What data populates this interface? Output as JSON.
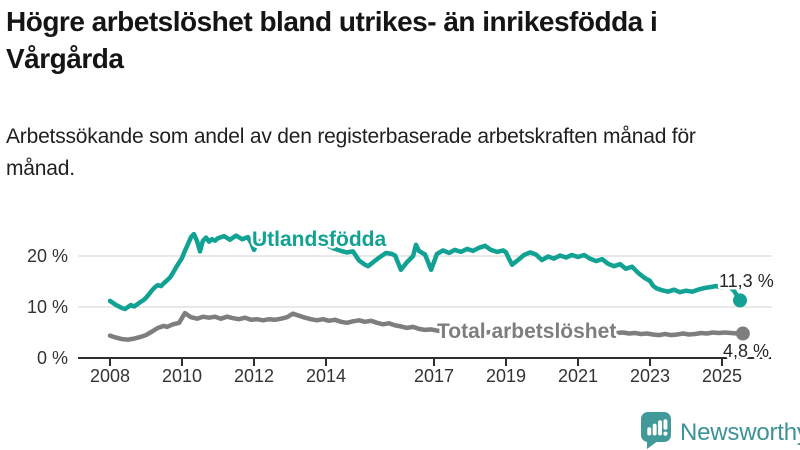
{
  "header": {
    "title": "Högre arbetslöshet bland utrikes- än inrikesfödda i Vårgårda",
    "subtitle": "Arbetssökande som andel av den registerbaserade arbetskraften månad för månad."
  },
  "colors": {
    "accent_teal": "#12a294",
    "series_gray": "#7e7e7e",
    "axis": "#2e2e2e",
    "gridline": "#dcdcdc",
    "text_dark": "#151515",
    "brand_teal": "#41999a"
  },
  "chart_data": {
    "type": "line",
    "title": "Högre arbetslöshet bland utrikes- än inrikesfödda i Vårgårda",
    "subtitle": "Arbetssökande som andel av den registerbaserade arbetskraften månad för månad.",
    "unit": "%",
    "grid": "horizontal",
    "legend_position": "inline-labels",
    "x_axis": {
      "range": [
        2007.1,
        2026.4
      ],
      "ticks": [
        2008,
        2010,
        2012,
        2014,
        2017,
        2019,
        2021,
        2023,
        2025
      ]
    },
    "y_axis": {
      "range": [
        0,
        32
      ],
      "ticks": [
        0,
        10,
        20
      ],
      "tick_labels": [
        "0 %",
        "10 %",
        "20 %"
      ]
    },
    "series": [
      {
        "name": "Utlandsfödda",
        "color": "#12a294",
        "end_label": "11,3 %",
        "end_value": 11.3,
        "points": [
          [
            2008.0,
            11.2
          ],
          [
            2008.08,
            10.8
          ],
          [
            2008.17,
            10.4
          ],
          [
            2008.25,
            10.1
          ],
          [
            2008.33,
            9.8
          ],
          [
            2008.42,
            9.6
          ],
          [
            2008.5,
            10.0
          ],
          [
            2008.58,
            10.4
          ],
          [
            2008.67,
            10.1
          ],
          [
            2008.75,
            10.5
          ],
          [
            2008.83,
            10.9
          ],
          [
            2008.92,
            11.3
          ],
          [
            2009.0,
            11.8
          ],
          [
            2009.08,
            12.5
          ],
          [
            2009.17,
            13.3
          ],
          [
            2009.25,
            13.9
          ],
          [
            2009.33,
            14.3
          ],
          [
            2009.42,
            14.1
          ],
          [
            2009.5,
            14.7
          ],
          [
            2009.58,
            15.2
          ],
          [
            2009.67,
            15.8
          ],
          [
            2009.75,
            16.7
          ],
          [
            2009.83,
            17.7
          ],
          [
            2009.92,
            18.7
          ],
          [
            2010.0,
            19.6
          ],
          [
            2010.08,
            21.0
          ],
          [
            2010.17,
            22.4
          ],
          [
            2010.25,
            23.7
          ],
          [
            2010.33,
            24.3
          ],
          [
            2010.42,
            22.9
          ],
          [
            2010.5,
            20.9
          ],
          [
            2010.58,
            23.0
          ],
          [
            2010.67,
            23.6
          ],
          [
            2010.75,
            22.8
          ],
          [
            2010.83,
            23.3
          ],
          [
            2010.92,
            23.0
          ],
          [
            2011.0,
            23.5
          ],
          [
            2011.17,
            23.9
          ],
          [
            2011.33,
            23.2
          ],
          [
            2011.5,
            24.0
          ],
          [
            2011.67,
            23.3
          ],
          [
            2011.83,
            23.7
          ],
          [
            2011.92,
            22.6
          ],
          [
            2012.0,
            21.2
          ],
          [
            2012.08,
            22.4
          ],
          [
            2012.25,
            23.3
          ],
          [
            2012.42,
            22.9
          ],
          [
            2012.58,
            23.3
          ],
          [
            2012.75,
            23.0
          ],
          [
            2012.92,
            23.4
          ],
          [
            2013.08,
            23.6
          ],
          [
            2013.25,
            23.2
          ],
          [
            2013.42,
            22.8
          ],
          [
            2013.58,
            23.1
          ],
          [
            2013.75,
            22.6
          ],
          [
            2013.92,
            22.3
          ],
          [
            2014.08,
            21.9
          ],
          [
            2014.25,
            21.4
          ],
          [
            2014.42,
            21.0
          ],
          [
            2014.58,
            20.7
          ],
          [
            2014.75,
            20.9
          ],
          [
            2014.92,
            19.1
          ],
          [
            2015.08,
            18.3
          ],
          [
            2015.17,
            18.0
          ],
          [
            2015.33,
            18.9
          ],
          [
            2015.5,
            19.8
          ],
          [
            2015.67,
            20.6
          ],
          [
            2015.83,
            20.4
          ],
          [
            2015.92,
            20.1
          ],
          [
            2016.08,
            17.3
          ],
          [
            2016.25,
            18.8
          ],
          [
            2016.42,
            20.0
          ],
          [
            2016.5,
            22.2
          ],
          [
            2016.58,
            21.0
          ],
          [
            2016.75,
            20.3
          ],
          [
            2016.83,
            18.9
          ],
          [
            2016.92,
            17.3
          ],
          [
            2017.08,
            20.4
          ],
          [
            2017.25,
            21.1
          ],
          [
            2017.42,
            20.6
          ],
          [
            2017.58,
            21.2
          ],
          [
            2017.75,
            20.8
          ],
          [
            2017.92,
            21.4
          ],
          [
            2018.08,
            21.0
          ],
          [
            2018.25,
            21.6
          ],
          [
            2018.42,
            22.0
          ],
          [
            2018.58,
            21.2
          ],
          [
            2018.75,
            20.8
          ],
          [
            2018.92,
            21.1
          ],
          [
            2019.0,
            20.7
          ],
          [
            2019.08,
            19.5
          ],
          [
            2019.17,
            18.3
          ],
          [
            2019.33,
            19.2
          ],
          [
            2019.5,
            20.2
          ],
          [
            2019.67,
            20.7
          ],
          [
            2019.83,
            20.3
          ],
          [
            2020.0,
            19.2
          ],
          [
            2020.17,
            19.9
          ],
          [
            2020.33,
            19.5
          ],
          [
            2020.5,
            20.1
          ],
          [
            2020.67,
            19.7
          ],
          [
            2020.83,
            20.2
          ],
          [
            2021.0,
            19.8
          ],
          [
            2021.17,
            20.2
          ],
          [
            2021.33,
            19.5
          ],
          [
            2021.5,
            19.0
          ],
          [
            2021.67,
            19.4
          ],
          [
            2021.83,
            18.5
          ],
          [
            2022.0,
            18.0
          ],
          [
            2022.17,
            18.4
          ],
          [
            2022.33,
            17.5
          ],
          [
            2022.5,
            17.9
          ],
          [
            2022.67,
            16.7
          ],
          [
            2022.83,
            15.8
          ],
          [
            2023.0,
            15.1
          ],
          [
            2023.08,
            14.2
          ],
          [
            2023.17,
            13.7
          ],
          [
            2023.33,
            13.3
          ],
          [
            2023.5,
            13.0
          ],
          [
            2023.67,
            13.4
          ],
          [
            2023.83,
            12.9
          ],
          [
            2024.0,
            13.2
          ],
          [
            2024.17,
            13.0
          ],
          [
            2024.33,
            13.4
          ],
          [
            2024.5,
            13.7
          ],
          [
            2024.67,
            13.9
          ],
          [
            2024.83,
            14.1
          ],
          [
            2025.0,
            13.8
          ],
          [
            2025.17,
            14.3
          ],
          [
            2025.33,
            13.2
          ],
          [
            2025.5,
            11.3
          ]
        ]
      },
      {
        "name": "Total arbetslöshet",
        "color": "#7e7e7e",
        "end_label": "4,8 %",
        "end_value": 4.8,
        "points": [
          [
            2008.0,
            4.4
          ],
          [
            2008.17,
            4.0
          ],
          [
            2008.33,
            3.7
          ],
          [
            2008.5,
            3.6
          ],
          [
            2008.67,
            3.8
          ],
          [
            2008.83,
            4.1
          ],
          [
            2009.0,
            4.5
          ],
          [
            2009.17,
            5.2
          ],
          [
            2009.33,
            5.9
          ],
          [
            2009.5,
            6.3
          ],
          [
            2009.58,
            6.1
          ],
          [
            2009.75,
            6.6
          ],
          [
            2009.92,
            6.9
          ],
          [
            2010.08,
            8.8
          ],
          [
            2010.25,
            8.0
          ],
          [
            2010.42,
            7.7
          ],
          [
            2010.58,
            8.1
          ],
          [
            2010.75,
            7.9
          ],
          [
            2010.92,
            8.1
          ],
          [
            2011.08,
            7.7
          ],
          [
            2011.25,
            8.1
          ],
          [
            2011.42,
            7.8
          ],
          [
            2011.58,
            7.6
          ],
          [
            2011.75,
            7.9
          ],
          [
            2011.92,
            7.5
          ],
          [
            2012.08,
            7.6
          ],
          [
            2012.25,
            7.4
          ],
          [
            2012.42,
            7.6
          ],
          [
            2012.58,
            7.5
          ],
          [
            2012.75,
            7.7
          ],
          [
            2012.92,
            8.0
          ],
          [
            2013.08,
            8.7
          ],
          [
            2013.25,
            8.3
          ],
          [
            2013.42,
            7.9
          ],
          [
            2013.58,
            7.6
          ],
          [
            2013.75,
            7.4
          ],
          [
            2013.92,
            7.6
          ],
          [
            2014.08,
            7.3
          ],
          [
            2014.25,
            7.5
          ],
          [
            2014.42,
            7.1
          ],
          [
            2014.58,
            6.9
          ],
          [
            2014.75,
            7.2
          ],
          [
            2014.92,
            7.4
          ],
          [
            2015.08,
            7.1
          ],
          [
            2015.25,
            7.3
          ],
          [
            2015.42,
            6.9
          ],
          [
            2015.58,
            6.6
          ],
          [
            2015.75,
            6.8
          ],
          [
            2015.92,
            6.4
          ],
          [
            2016.08,
            6.2
          ],
          [
            2016.25,
            5.9
          ],
          [
            2016.42,
            6.1
          ],
          [
            2016.58,
            5.7
          ],
          [
            2016.75,
            5.5
          ],
          [
            2016.92,
            5.6
          ],
          [
            2017.08,
            5.4
          ],
          [
            2017.25,
            5.2
          ],
          [
            2017.42,
            5.4
          ],
          [
            2017.58,
            5.1
          ],
          [
            2017.75,
            5.3
          ],
          [
            2017.92,
            5.2
          ],
          [
            2018.08,
            5.0
          ],
          [
            2018.25,
            5.2
          ],
          [
            2018.42,
            5.0
          ],
          [
            2018.58,
            5.1
          ],
          [
            2018.75,
            4.9
          ],
          [
            2018.92,
            5.1
          ],
          [
            2019.08,
            5.0
          ],
          [
            2019.25,
            5.2
          ],
          [
            2019.42,
            5.1
          ],
          [
            2019.58,
            5.3
          ],
          [
            2019.75,
            5.2
          ],
          [
            2019.92,
            5.4
          ],
          [
            2020.08,
            5.6
          ],
          [
            2020.25,
            5.8
          ],
          [
            2020.42,
            5.7
          ],
          [
            2020.58,
            5.5
          ],
          [
            2020.75,
            5.6
          ],
          [
            2020.92,
            5.4
          ],
          [
            2021.08,
            5.5
          ],
          [
            2021.25,
            5.3
          ],
          [
            2021.42,
            5.2
          ],
          [
            2021.58,
            5.3
          ],
          [
            2021.75,
            5.1
          ],
          [
            2021.92,
            5.0
          ],
          [
            2022.08,
            4.9
          ],
          [
            2022.25,
            5.0
          ],
          [
            2022.42,
            4.8
          ],
          [
            2022.58,
            4.9
          ],
          [
            2022.75,
            4.7
          ],
          [
            2022.92,
            4.8
          ],
          [
            2023.08,
            4.6
          ],
          [
            2023.25,
            4.5
          ],
          [
            2023.42,
            4.7
          ],
          [
            2023.58,
            4.5
          ],
          [
            2023.75,
            4.6
          ],
          [
            2023.92,
            4.8
          ],
          [
            2024.08,
            4.6
          ],
          [
            2024.25,
            4.7
          ],
          [
            2024.42,
            4.9
          ],
          [
            2024.58,
            4.8
          ],
          [
            2024.75,
            5.0
          ],
          [
            2024.92,
            4.9
          ],
          [
            2025.08,
            5.0
          ],
          [
            2025.25,
            4.9
          ],
          [
            2025.42,
            4.8
          ],
          [
            2025.58,
            4.8
          ]
        ]
      }
    ]
  },
  "footer": {
    "brand": "Newsworthy"
  }
}
